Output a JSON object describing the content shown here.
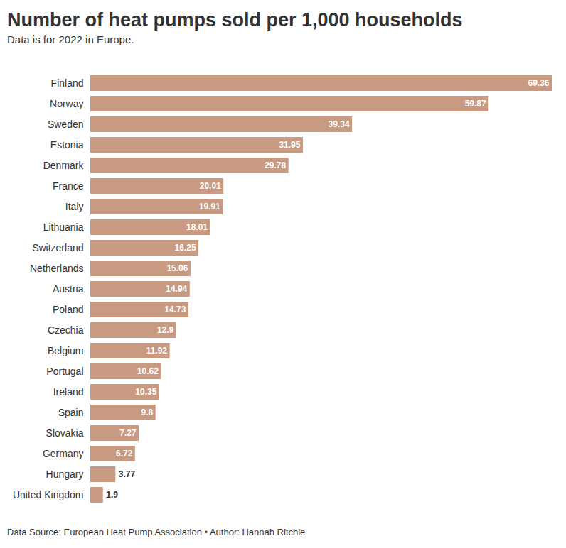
{
  "chart_data": {
    "type": "bar",
    "title": "Number of heat pumps sold per 1,000 households",
    "subtitle": "Data is for 2022 in Europe.",
    "caption": "Data Source: European Heat Pump Association • Author: Hannah Ritchie",
    "orientation": "horizontal",
    "categories": [
      "Finland",
      "Norway",
      "Sweden",
      "Estonia",
      "Denmark",
      "France",
      "Italy",
      "Lithuania",
      "Switzerland",
      "Netherlands",
      "Austria",
      "Poland",
      "Czechia",
      "Belgium",
      "Portugal",
      "Ireland",
      "Spain",
      "Slovakia",
      "Germany",
      "Hungary",
      "United Kingdom"
    ],
    "values": [
      69.36,
      59.87,
      39.34,
      31.95,
      29.78,
      20.01,
      19.91,
      18.01,
      16.25,
      15.06,
      14.94,
      14.73,
      12.9,
      11.92,
      10.62,
      10.35,
      9.8,
      7.27,
      6.72,
      3.77,
      1.9
    ],
    "color": "#c99a82",
    "xlim": [
      0,
      69.36
    ],
    "data_labels": true,
    "tick_labels": "y",
    "grid": false
  }
}
